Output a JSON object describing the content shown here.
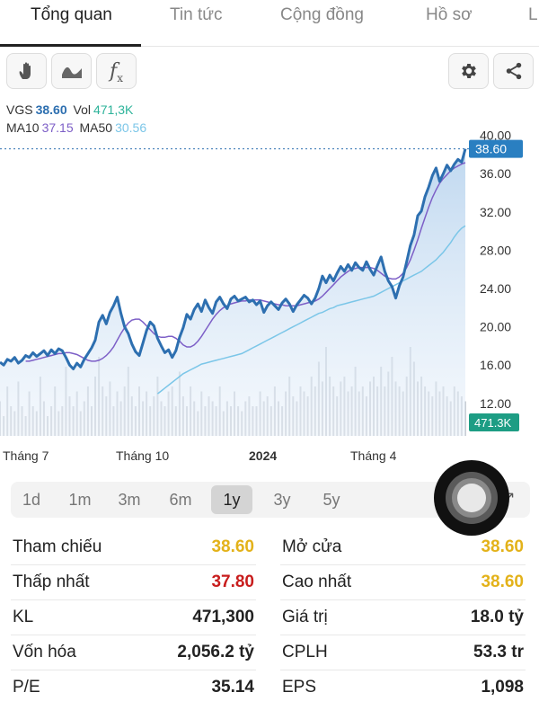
{
  "tabs": [
    {
      "label": "Tổng quan",
      "active": true
    },
    {
      "label": "Tin tức",
      "active": false
    },
    {
      "label": "Cộng đồng",
      "active": false
    },
    {
      "label": "Hồ sơ",
      "active": false
    },
    {
      "label": "L",
      "active": false
    }
  ],
  "toolbar": {
    "left_icons": [
      "hand-icon",
      "wave-icon",
      "formula-icon"
    ],
    "right_icons": [
      "gear-icon",
      "share-icon"
    ],
    "formula_glyph": "f"
  },
  "legend": {
    "symbol": "VGS",
    "price": "38.60",
    "vol_label": "Vol",
    "vol": "471,3K",
    "ma10_label": "MA10",
    "ma10": "37.15",
    "ma50_label": "MA50",
    "ma50": "30.56"
  },
  "colors": {
    "price_line": "#2d6fb0",
    "ma10": "#7d5fc7",
    "ma50": "#7bc6e8",
    "price_tag": "#2a7fc1",
    "volume_tag": "#1d9d84",
    "positive": "#e3b21a",
    "negative": "#c81d1d"
  },
  "chart_data": {
    "type": "line",
    "x_tick_labels": [
      "Tháng 7",
      "Tháng 10",
      "2024",
      "Tháng 4"
    ],
    "y_tick_labels": [
      "40.00",
      "36.00",
      "32.00",
      "28.00",
      "24.00",
      "20.00",
      "16.00",
      "12.00"
    ],
    "ylim": [
      8.6,
      41.0
    ],
    "current_price_tag": "38.60",
    "current_volume_tag": "471.3K",
    "series": [
      {
        "name": "VGS",
        "values": [
          16.3,
          16.0,
          16.6,
          16.4,
          16.8,
          16.2,
          16.5,
          17.0,
          16.8,
          17.3,
          16.9,
          17.2,
          17.5,
          17.0,
          17.6,
          17.2,
          17.7,
          17.5,
          16.8,
          16.0,
          15.6,
          16.2,
          15.8,
          16.6,
          17.2,
          17.8,
          18.6,
          20.5,
          21.2,
          20.3,
          21.5,
          22.2,
          23.1,
          21.4,
          20.0,
          19.3,
          18.2,
          17.4,
          17.0,
          18.3,
          19.6,
          20.5,
          20.1,
          18.8,
          18.0,
          17.3,
          17.6,
          16.8,
          17.5,
          18.9,
          19.9,
          21.3,
          20.8,
          21.8,
          22.4,
          21.6,
          22.8,
          22.0,
          21.4,
          22.6,
          23.1,
          22.4,
          21.9,
          22.9,
          23.2,
          22.7,
          22.9,
          23.1,
          22.6,
          22.8,
          22.3,
          22.7,
          21.5,
          22.2,
          22.6,
          22.2,
          21.8,
          22.5,
          22.9,
          22.4,
          21.6,
          22.3,
          22.8,
          23.3,
          23.0,
          22.4,
          23.0,
          24.0,
          25.3,
          24.6,
          25.4,
          24.8,
          25.6,
          26.3,
          25.8,
          26.5,
          25.9,
          26.7,
          26.2,
          25.9,
          26.8,
          26.0,
          25.4,
          26.4,
          27.3,
          25.8,
          24.8,
          24.2,
          23.0,
          24.3,
          25.2,
          26.8,
          28.5,
          29.6,
          31.6,
          32.1,
          33.6,
          34.6,
          35.8,
          36.6,
          35.2,
          36.0,
          36.9,
          36.3,
          37.0,
          37.5,
          37.2,
          38.6
        ]
      },
      {
        "name": "MA10",
        "values": [
          16.4,
          16.4,
          16.5,
          16.6,
          16.7,
          16.8,
          16.9,
          17.0,
          17.1,
          17.2,
          17.2,
          17.3,
          17.3,
          17.2,
          17.1,
          16.9,
          16.7,
          16.5,
          16.4,
          16.4,
          16.5,
          16.7,
          17.0,
          17.4,
          17.9,
          18.6,
          19.3,
          19.9,
          20.4,
          20.7,
          20.8,
          20.8,
          20.5,
          20.1,
          19.7,
          19.3,
          19.0,
          18.9,
          18.9,
          19.0,
          19.0,
          18.8,
          18.5,
          18.1,
          17.9,
          17.9,
          18.1,
          18.5,
          19.0,
          19.6,
          20.2,
          20.8,
          21.3,
          21.7,
          22.0,
          22.2,
          22.4,
          22.5,
          22.6,
          22.7,
          22.7,
          22.8,
          22.8,
          22.8,
          22.8,
          22.7,
          22.6,
          22.5,
          22.4,
          22.3,
          22.3,
          22.2,
          22.2,
          22.2,
          22.2,
          22.3,
          22.4,
          22.5,
          22.6,
          22.7,
          22.9,
          23.2,
          23.6,
          24.0,
          24.4,
          24.8,
          25.2,
          25.5,
          25.8,
          26.0,
          26.1,
          26.2,
          26.2,
          26.2,
          26.2,
          26.1,
          25.9,
          25.6,
          25.3,
          25.1,
          25.0,
          25.0,
          25.2,
          25.6,
          26.2,
          27.0,
          28.0,
          29.1,
          30.3,
          31.4,
          32.5,
          33.5,
          34.3,
          35.0,
          35.5,
          35.9,
          36.3,
          36.6,
          36.8,
          37.0,
          37.15
        ]
      },
      {
        "name": "MA50",
        "values": [
          13.0,
          13.3,
          13.6,
          13.9,
          14.2,
          14.5,
          14.8,
          15.1,
          15.3,
          15.5,
          15.7,
          15.9,
          16.1,
          16.2,
          16.3,
          16.4,
          16.5,
          16.6,
          16.7,
          16.8,
          16.9,
          17.0,
          17.1,
          17.2,
          17.4,
          17.6,
          17.8,
          18.0,
          18.2,
          18.4,
          18.6,
          18.8,
          19.0,
          19.2,
          19.4,
          19.6,
          19.8,
          20.0,
          20.2,
          20.4,
          20.6,
          20.8,
          21.0,
          21.2,
          21.4,
          21.5,
          21.7,
          21.9,
          22.0,
          22.2,
          22.3,
          22.4,
          22.5,
          22.6,
          22.7,
          22.8,
          22.9,
          23.0,
          23.1,
          23.2,
          23.4,
          23.6,
          23.8,
          24.0,
          24.2,
          24.4,
          24.6,
          24.8,
          25.0,
          25.2,
          25.4,
          25.6,
          25.8,
          26.1,
          26.4,
          26.7,
          27.0,
          27.4,
          27.8,
          28.3,
          28.8,
          29.4,
          29.9,
          30.3,
          30.56
        ]
      }
    ],
    "volume_levels": [
      0.35,
      0.2,
      0.5,
      0.3,
      0.25,
      0.55,
      0.3,
      0.2,
      0.45,
      0.3,
      0.25,
      0.6,
      0.35,
      0.2,
      0.3,
      0.5,
      0.25,
      0.3,
      0.7,
      0.4,
      0.3,
      0.45,
      0.25,
      0.35,
      0.5,
      0.3,
      0.6,
      0.8,
      0.5,
      0.4,
      0.55,
      0.3,
      0.45,
      0.35,
      0.5,
      0.7,
      0.4,
      0.3,
      0.5,
      0.35,
      0.45,
      0.3,
      0.4,
      0.6,
      0.35,
      0.3,
      0.45,
      0.5,
      0.3,
      0.65,
      0.4,
      0.3,
      0.5,
      0.35,
      0.25,
      0.45,
      0.3,
      0.4,
      0.35,
      0.3,
      0.5,
      0.25,
      0.35,
      0.3,
      0.45,
      0.3,
      0.25,
      0.35,
      0.4,
      0.3,
      0.3,
      0.45,
      0.35,
      0.4,
      0.3,
      0.5,
      0.35,
      0.3,
      0.45,
      0.6,
      0.4,
      0.35,
      0.5,
      0.45,
      0.4,
      0.6,
      0.5,
      0.75,
      0.55,
      0.9,
      0.6,
      0.5,
      0.4,
      0.55,
      0.6,
      0.45,
      0.5,
      0.7,
      0.45,
      0.5,
      0.4,
      0.55,
      0.6,
      0.5,
      0.7,
      0.5,
      0.65,
      0.8,
      0.55,
      0.5,
      0.45,
      0.6,
      0.9,
      0.75,
      0.55,
      0.6,
      0.5,
      0.45,
      0.4,
      0.55,
      0.45,
      0.5,
      0.4,
      0.35,
      0.5,
      0.45,
      0.4,
      0.35
    ],
    "grid": false,
    "legend": "top-left"
  },
  "ranges": [
    {
      "label": "1d",
      "active": false
    },
    {
      "label": "1m",
      "active": false
    },
    {
      "label": "3m",
      "active": false
    },
    {
      "label": "6m",
      "active": false
    },
    {
      "label": "1y",
      "active": true
    },
    {
      "label": "3y",
      "active": false
    },
    {
      "label": "5y",
      "active": false
    }
  ],
  "fullscreen_icon": "expand-icon",
  "stats": {
    "ref_label": "Tham chiếu",
    "ref_value": "38.60",
    "open_label": "Mở cửa",
    "open_value": "38.60",
    "low_label": "Thấp nhất",
    "low_value": "37.80",
    "high_label": "Cao nhất",
    "high_value": "38.60",
    "vol_label": "KL",
    "vol_value": "471,300",
    "value_label": "Giá trị",
    "value_value": "18.0 tỷ",
    "cap_label": "Vốn hóa",
    "cap_value": "2,056.2 tỷ",
    "shares_label": "CPLH",
    "shares_value": "53.3 tr",
    "pe_label": "P/E",
    "pe_value": "35.14",
    "eps_label": "EPS",
    "eps_value": "1,098"
  }
}
